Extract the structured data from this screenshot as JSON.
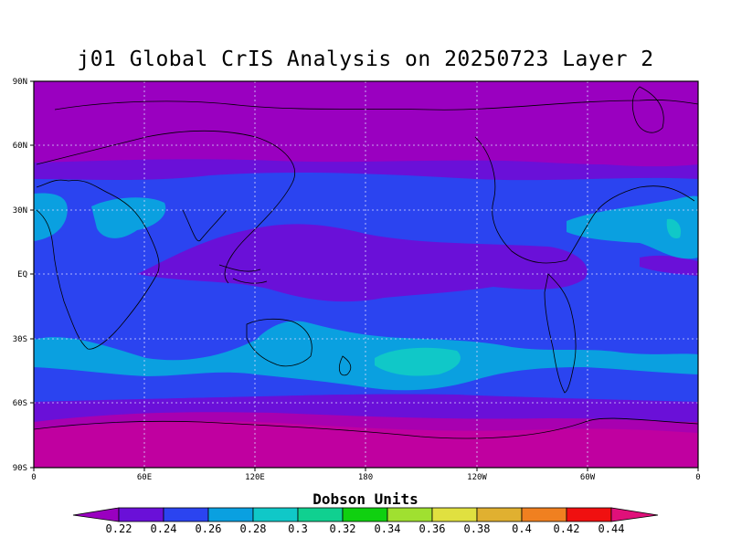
{
  "title": "j01 Global CrIS Analysis on 20250723 Layer 2",
  "map": {
    "lat_labels": [
      "90N",
      "60N",
      "30N",
      "EQ",
      "30S",
      "60S",
      "90S"
    ],
    "lon_labels": [
      "0",
      "60E",
      "120E",
      "180",
      "120W",
      "60W",
      "0"
    ]
  },
  "colorbar": {
    "title": "Dobson Units",
    "tick_labels": [
      "0.22",
      "0.24",
      "0.26",
      "0.28",
      "0.3",
      "0.32",
      "0.34",
      "0.36",
      "0.38",
      "0.4",
      "0.42",
      "0.44"
    ],
    "colors": [
      "#9a00c0",
      "#6a10d8",
      "#2b44f0",
      "#0aa0e0",
      "#10c8c8",
      "#10d090",
      "#10d010",
      "#a0e030",
      "#e0e040",
      "#e0b030",
      "#f08020",
      "#f01010",
      "#e0107a"
    ]
  },
  "colors": {
    "band_polar": "#9a00c0",
    "band_polar_south": "#a800b0",
    "band_mid": "#6a10d8",
    "band_blue": "#2b44f0",
    "band_lightblue": "#0aa0e0",
    "band_cyan": "#10c8c8",
    "band_magenta": "#c000a0"
  }
}
